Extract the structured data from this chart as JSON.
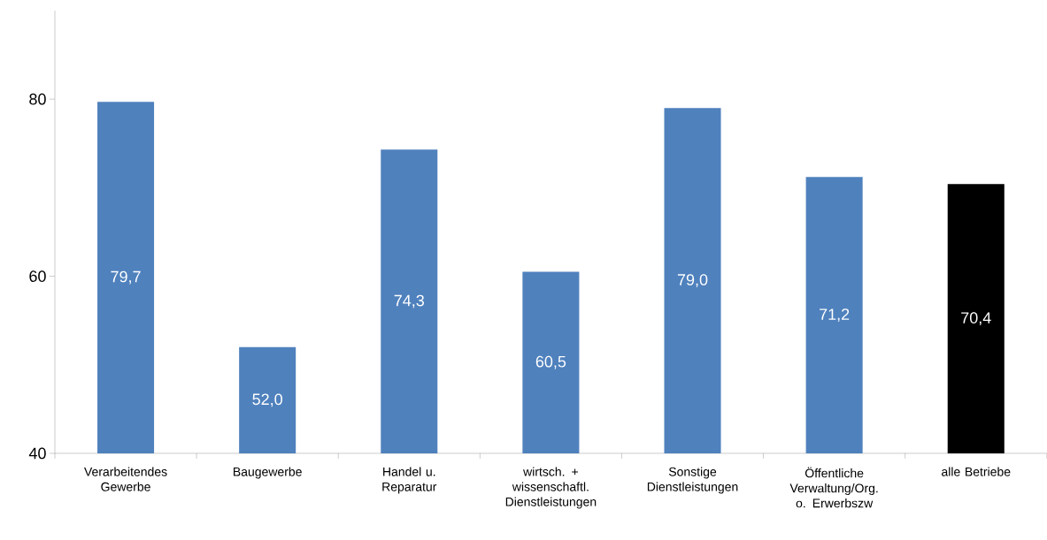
{
  "chart_data": {
    "type": "bar",
    "categories": [
      "Verarbeitendes Gewerbe",
      "Baugewerbe",
      "Handel u. Reparatur",
      "wirtsch. + wissenschaftl. Dienstleistungen",
      "Sonstige Dienstleistungen",
      "Öffentliche Verwaltung/Org. o. Erwerbszw",
      "alle Betriebe"
    ],
    "values": [
      79.7,
      52.0,
      74.3,
      60.5,
      79.0,
      71.2,
      70.4
    ],
    "value_labels": [
      "79,7",
      "52,0",
      "74,3",
      "60,5",
      "79,0",
      "71,2",
      "70,4"
    ],
    "colors": [
      "#4f81bd",
      "#4f81bd",
      "#4f81bd",
      "#4f81bd",
      "#4f81bd",
      "#4f81bd",
      "#000000"
    ],
    "ylim": [
      40,
      90
    ],
    "yticks": [
      40,
      60,
      80
    ],
    "grid": false
  }
}
